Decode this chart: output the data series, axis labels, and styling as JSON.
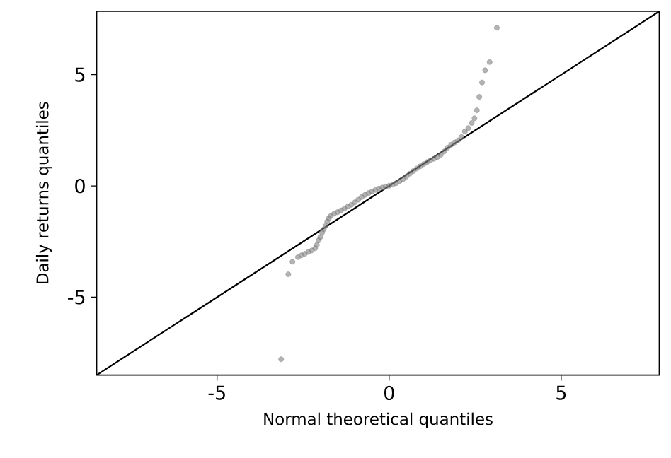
{
  "chart_data": {
    "type": "scatter",
    "xlabel": "Normal theoretical quantiles",
    "ylabel": "Daily returns quantiles",
    "xlim": [
      -8.5,
      7.85
    ],
    "ylim": [
      -8.5,
      7.85
    ],
    "xticks": [
      -5,
      0,
      5
    ],
    "yticks": [
      -5,
      0,
      5
    ],
    "series": [
      {
        "type": "scatter",
        "color": "#808080",
        "marker": "circle",
        "x": [
          -3.14,
          -2.93,
          -2.81,
          -2.65,
          -2.55,
          -2.45,
          -2.35,
          -2.25,
          -2.15,
          -2.1,
          -2.05,
          -2.0,
          -1.95,
          -1.9,
          -1.85,
          -1.8,
          -1.75,
          -1.7,
          -1.6,
          -1.5,
          -1.4,
          -1.3,
          -1.2,
          -1.1,
          -1.0,
          -0.9,
          -0.8,
          -0.7,
          -0.6,
          -0.5,
          -0.4,
          -0.3,
          -0.2,
          -0.1,
          0,
          0.1,
          0.2,
          0.3,
          0.4,
          0.5,
          0.6,
          0.7,
          0.8,
          0.9,
          1.0,
          1.1,
          1.2,
          1.3,
          1.4,
          1.5,
          1.6,
          1.7,
          1.8,
          1.9,
          2.0,
          2.1,
          2.2,
          2.3,
          2.4,
          2.48,
          2.55,
          2.62,
          2.7,
          2.79,
          2.92,
          3.13
        ],
        "values": [
          -7.79,
          -3.97,
          -3.41,
          -3.2,
          -3.12,
          -3.05,
          -2.97,
          -2.9,
          -2.8,
          -2.65,
          -2.45,
          -2.3,
          -2.1,
          -1.95,
          -1.8,
          -1.6,
          -1.45,
          -1.35,
          -1.25,
          -1.18,
          -1.1,
          -1.02,
          -0.93,
          -0.85,
          -0.74,
          -0.62,
          -0.5,
          -0.4,
          -0.32,
          -0.25,
          -0.18,
          -0.12,
          -0.07,
          -0.03,
          0.01,
          0.06,
          0.12,
          0.2,
          0.3,
          0.42,
          0.55,
          0.67,
          0.78,
          0.88,
          0.98,
          1.07,
          1.15,
          1.22,
          1.3,
          1.4,
          1.55,
          1.72,
          1.85,
          1.95,
          2.05,
          2.2,
          2.45,
          2.6,
          2.83,
          3.04,
          3.4,
          4.0,
          4.65,
          5.2,
          5.57,
          7.11
        ]
      },
      {
        "type": "line",
        "color": "#000000",
        "line_style": "solid",
        "x": [
          -8.5,
          7.85
        ],
        "values": [
          -8.5,
          7.85
        ]
      }
    ]
  }
}
